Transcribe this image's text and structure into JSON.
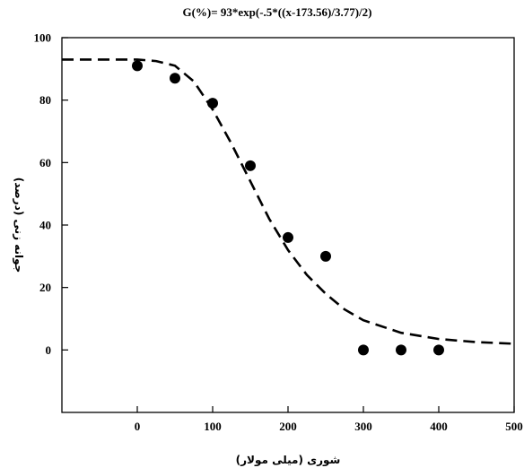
{
  "chart_data": {
    "type": "scatter",
    "title": "G(%)= 93*exp(-.5*((x-173.56)/3.77)/2)",
    "xlabel": "شوری (میلی مولار)",
    "ylabel": "جوانه زنی (درصد)",
    "xlim": [
      -100,
      500
    ],
    "ylim": [
      -20,
      100
    ],
    "x_ticks": [
      0,
      100,
      200,
      300,
      400,
      500
    ],
    "y_ticks": [
      0,
      20,
      40,
      60,
      80,
      100
    ],
    "grid": false,
    "series": [
      {
        "type": "scatter",
        "marker": "filled-circle",
        "color": "#000000",
        "x": [
          0,
          50,
          100,
          150,
          200,
          250,
          300,
          350,
          400
        ],
        "y": [
          91,
          87,
          79,
          59,
          36,
          30,
          0,
          0,
          0
        ]
      },
      {
        "type": "line",
        "style": "dashed",
        "color": "#000000",
        "x": [
          -100,
          -50,
          0,
          25,
          50,
          75,
          100,
          125,
          150,
          175,
          200,
          225,
          250,
          275,
          300,
          350,
          400,
          450,
          500
        ],
        "y": [
          93,
          93,
          93,
          92.5,
          91,
          86,
          77,
          66,
          54,
          42,
          32,
          24,
          18,
          13,
          9.5,
          5.5,
          3.5,
          2.5,
          2
        ]
      }
    ]
  }
}
